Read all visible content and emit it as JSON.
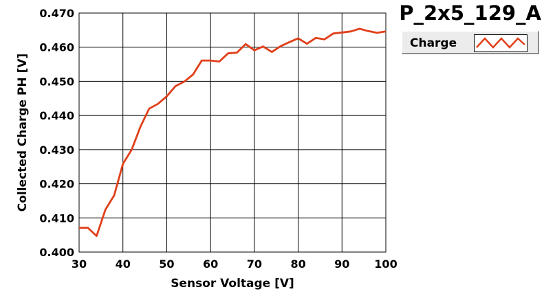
{
  "plot": {
    "title": "P_2x5_129_A",
    "legend_label": "Charge"
  },
  "colors": {
    "series": "#e0401a",
    "grid": "#000000",
    "background": "#ffffff"
  },
  "chart_data": {
    "type": "line",
    "title": "P_2x5_129_A",
    "xlabel": "Sensor Voltage [V]",
    "ylabel": "Collected Charge PH [V]",
    "xlim": [
      30,
      100
    ],
    "ylim": [
      0.4,
      0.47
    ],
    "xticks": [
      "30",
      "40",
      "50",
      "60",
      "70",
      "80",
      "90",
      "100"
    ],
    "yticks": [
      "0.400",
      "0.410",
      "0.420",
      "0.430",
      "0.440",
      "0.450",
      "0.460",
      "0.470"
    ],
    "grid": true,
    "legend_position": "top-right",
    "series": [
      {
        "name": "Charge",
        "x": [
          30,
          32,
          34,
          36,
          38,
          40,
          42,
          44,
          46,
          48,
          50,
          52,
          54,
          56,
          58,
          60,
          62,
          64,
          66,
          68,
          70,
          72,
          74,
          76,
          78,
          80,
          82,
          84,
          86,
          88,
          90,
          92,
          94,
          96,
          98,
          100
        ],
        "y": [
          0.4071,
          0.4071,
          0.4047,
          0.4124,
          0.4166,
          0.4258,
          0.43,
          0.4367,
          0.442,
          0.4434,
          0.4456,
          0.4486,
          0.4499,
          0.452,
          0.4561,
          0.4561,
          0.4558,
          0.4582,
          0.4584,
          0.4609,
          0.4591,
          0.4602,
          0.4586,
          0.4603,
          0.4615,
          0.4626,
          0.461,
          0.4627,
          0.4623,
          0.464,
          0.4643,
          0.4646,
          0.4654,
          0.4647,
          0.4642,
          0.4646
        ]
      }
    ]
  }
}
